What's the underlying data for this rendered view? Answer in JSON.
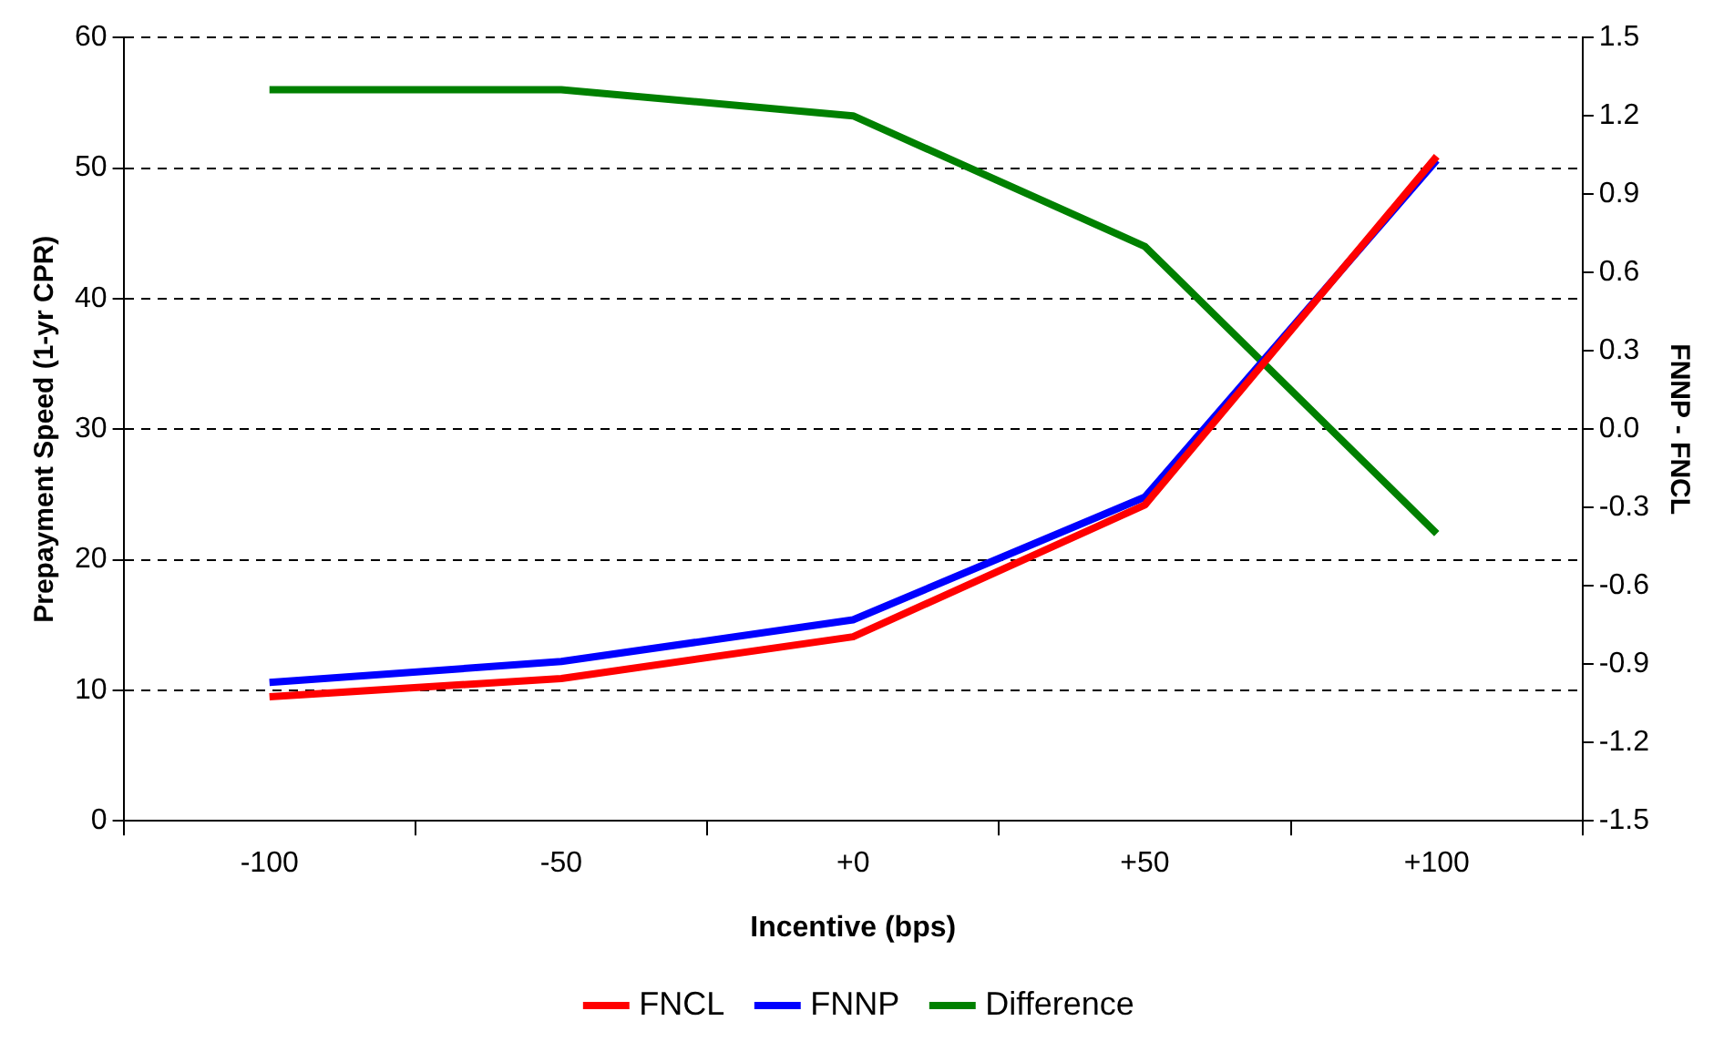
{
  "chart_data": {
    "type": "line",
    "xlabel": "Incentive (bps)",
    "ylabel": "Prepayment Speed (1-yr CPR)",
    "y2label": "FNNP - FNCL",
    "categories": [
      "-100",
      "-50",
      "+0",
      "+50",
      "+100"
    ],
    "series": [
      {
        "name": "FNCL",
        "color": "#ff0000",
        "values": [
          9.5,
          10.9,
          14.1,
          24.2,
          50.9
        ]
      },
      {
        "name": "FNNP",
        "color": "#0000ff",
        "values": [
          10.6,
          12.2,
          15.4,
          24.8,
          50.6
        ]
      },
      {
        "name": "Difference",
        "color": "#008000",
        "axis": "y2",
        "values": [
          1.3,
          1.3,
          1.2,
          0.7,
          -0.4
        ]
      }
    ],
    "ylim": [
      0,
      60
    ],
    "yticks": [
      0,
      10,
      20,
      30,
      40,
      50,
      60
    ],
    "y2lim": [
      -1.5,
      1.5
    ],
    "y2ticks": [
      {
        "value": -1.5,
        "label": "-1.5"
      },
      {
        "value": -1.2,
        "label": "-1.2"
      },
      {
        "value": -0.9,
        "label": "-0.9"
      },
      {
        "value": -0.6,
        "label": "-0.6"
      },
      {
        "value": -0.3,
        "label": "-0.3"
      },
      {
        "value": 0,
        "label": "0.0"
      },
      {
        "value": 0.3,
        "label": "0.3"
      },
      {
        "value": 0.6,
        "label": "0.6"
      },
      {
        "value": 0.9,
        "label": "0.9"
      },
      {
        "value": 1.2,
        "label": "1.2"
      },
      {
        "value": 1.5,
        "label": "1.5"
      }
    ],
    "grid": "y",
    "legend": "bottom",
    "marker": "none",
    "line_style": "solid"
  }
}
